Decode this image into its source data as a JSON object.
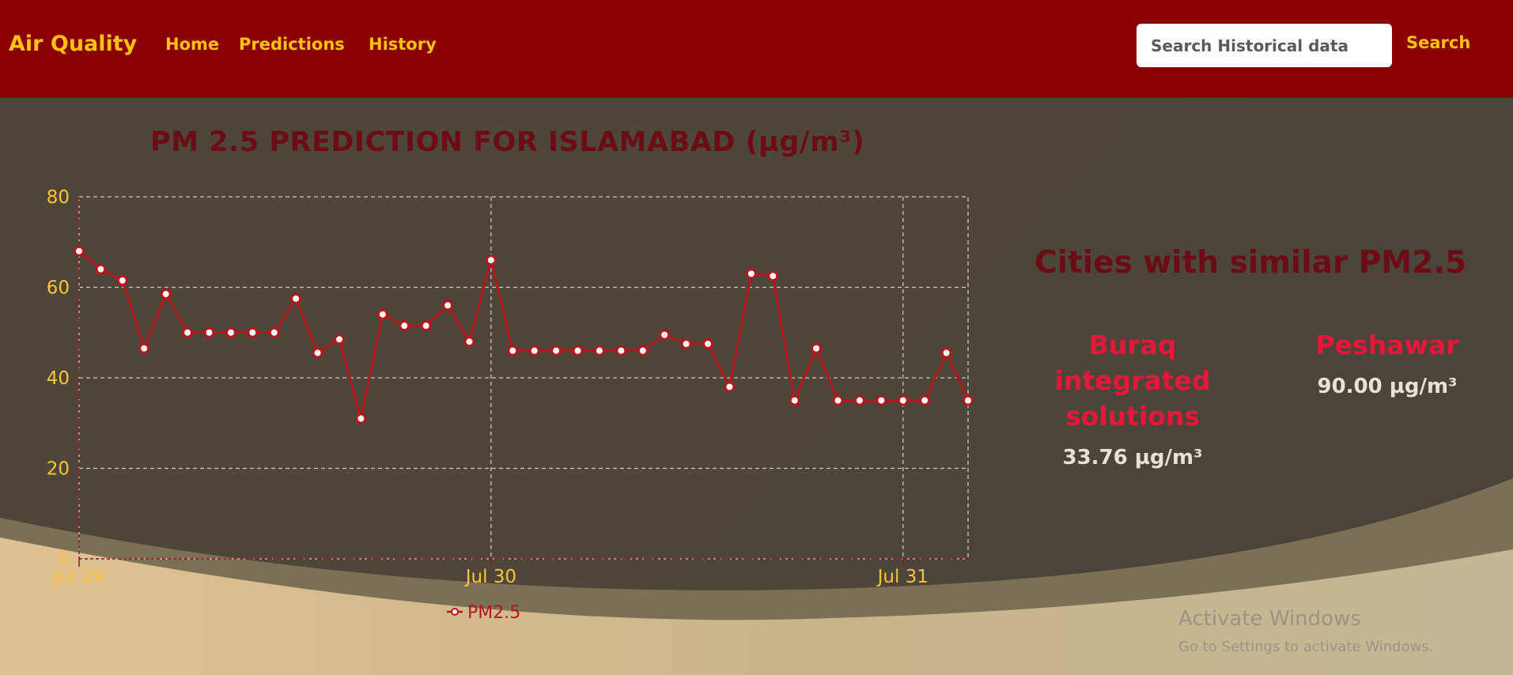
{
  "nav": {
    "brand": "Air Quality",
    "links": [
      {
        "label": "Home"
      },
      {
        "label": "Predictions"
      },
      {
        "label": "History"
      }
    ],
    "search": {
      "placeholder": "Search Historical data",
      "button_label": "Search"
    }
  },
  "colors": {
    "navbar": "#8b0000",
    "nav_text": "#ffc20e",
    "title": "#6d0c14",
    "line": "#b5161c",
    "city_name": "#e8173a",
    "axis_tick": "#ffc23a"
  },
  "chart_data": {
    "type": "line",
    "title": "PM 2.5 PREDICTION FOR ISLAMABAD (µg/m³)",
    "xlabel": "",
    "ylabel": "",
    "ylim": [
      0,
      80
    ],
    "yticks": [
      0,
      20,
      40,
      60,
      80
    ],
    "x_ticks": [
      "Jul 29",
      "Jul 30",
      "Jul 31"
    ],
    "grid": true,
    "legend_position": "bottom",
    "series": [
      {
        "name": "PM2.5",
        "values": [
          68,
          64,
          61.5,
          46.5,
          58.5,
          50,
          50,
          50,
          50,
          50,
          57.5,
          45.5,
          48.5,
          31,
          54,
          51.5,
          51.5,
          56,
          48,
          66,
          46,
          46,
          46,
          46,
          46,
          46,
          46,
          49.5,
          47.5,
          47.5,
          38,
          63,
          62.5,
          35,
          46.5,
          35,
          35,
          35,
          35,
          35,
          45.5,
          35
        ]
      }
    ]
  },
  "similar": {
    "heading": "Cities with similar PM2.5",
    "cities": [
      {
        "name_lines": [
          "Buraq",
          "integrated",
          "solutions"
        ],
        "value": "33.76 µg/m³"
      },
      {
        "name_lines": [
          "Peshawar"
        ],
        "value": "90.00 µg/m³"
      }
    ]
  },
  "watermark": {
    "title": "Activate Windows",
    "subtitle": "Go to Settings to activate Windows."
  }
}
